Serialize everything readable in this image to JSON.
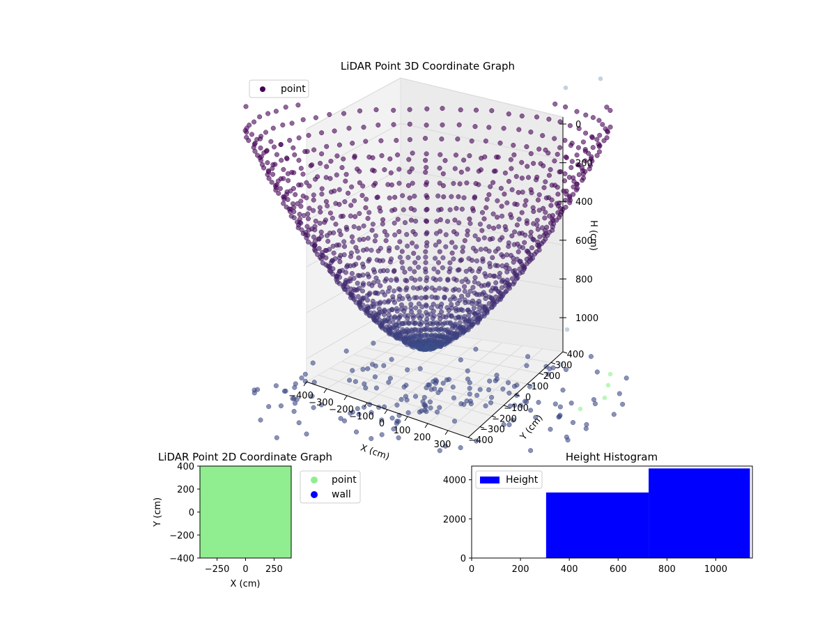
{
  "chart_data": [
    {
      "type": "scatter",
      "title": "LiDAR Point 3D Coordinate Graph",
      "xlabel": "X (cm)",
      "ylabel": "Y (cm)",
      "zlabel": "H (cm)",
      "legend": {
        "placement": "top-left",
        "entries": [
          "point"
        ]
      },
      "xlim": [
        -400,
        400
      ],
      "ylim": [
        -400,
        400
      ],
      "zlim": [
        0,
        1100
      ],
      "z_inverted": true,
      "xticks": [
        "−400",
        "−300",
        "−200",
        "−100",
        "0",
        "100",
        "200",
        "300"
      ],
      "yticks": [
        "−400",
        "−300",
        "−200",
        "−100",
        "0",
        "100",
        "200",
        "300",
        "400"
      ],
      "zticks": [
        "0",
        "200",
        "400",
        "600",
        "800",
        "1000"
      ],
      "series": [
        {
          "name": "point",
          "color_low": "#440154",
          "color_high": "#3b528b",
          "outlier_color": "#90ee90"
        }
      ]
    },
    {
      "type": "scatter",
      "title": "LiDAR Point 2D Coordinate Graph",
      "xlabel": "X (cm)",
      "ylabel": "Y (cm)",
      "xlim": [
        -400,
        400
      ],
      "ylim": [
        -400,
        400
      ],
      "xticks": [
        "−250",
        "0",
        "250"
      ],
      "yticks": [
        "400",
        "200",
        "0",
        "−200",
        "−400"
      ],
      "legend": {
        "placement": "outside-right",
        "entries": [
          "point",
          "wall"
        ]
      },
      "series": [
        {
          "name": "point",
          "color": "#90ee90",
          "fill": true
        },
        {
          "name": "wall",
          "color": "#0000ff",
          "values": []
        }
      ]
    },
    {
      "type": "bar",
      "title": "Height Histogram",
      "xlabel": "",
      "ylabel": "",
      "xlim": [
        0,
        1150
      ],
      "ylim": [
        0,
        4700
      ],
      "xticks": [
        "0",
        "200",
        "400",
        "600",
        "800",
        "1000"
      ],
      "yticks": [
        "0",
        "2000",
        "4000"
      ],
      "legend": {
        "placement": "top-left",
        "entries": [
          "Height"
        ]
      },
      "series": [
        {
          "name": "Height",
          "color": "#0000ff",
          "bins": [
            {
              "start": 0,
              "end": 305,
              "count": 0
            },
            {
              "start": 305,
              "end": 725,
              "count": 3350
            },
            {
              "start": 725,
              "end": 1140,
              "count": 4580
            }
          ]
        }
      ]
    }
  ]
}
